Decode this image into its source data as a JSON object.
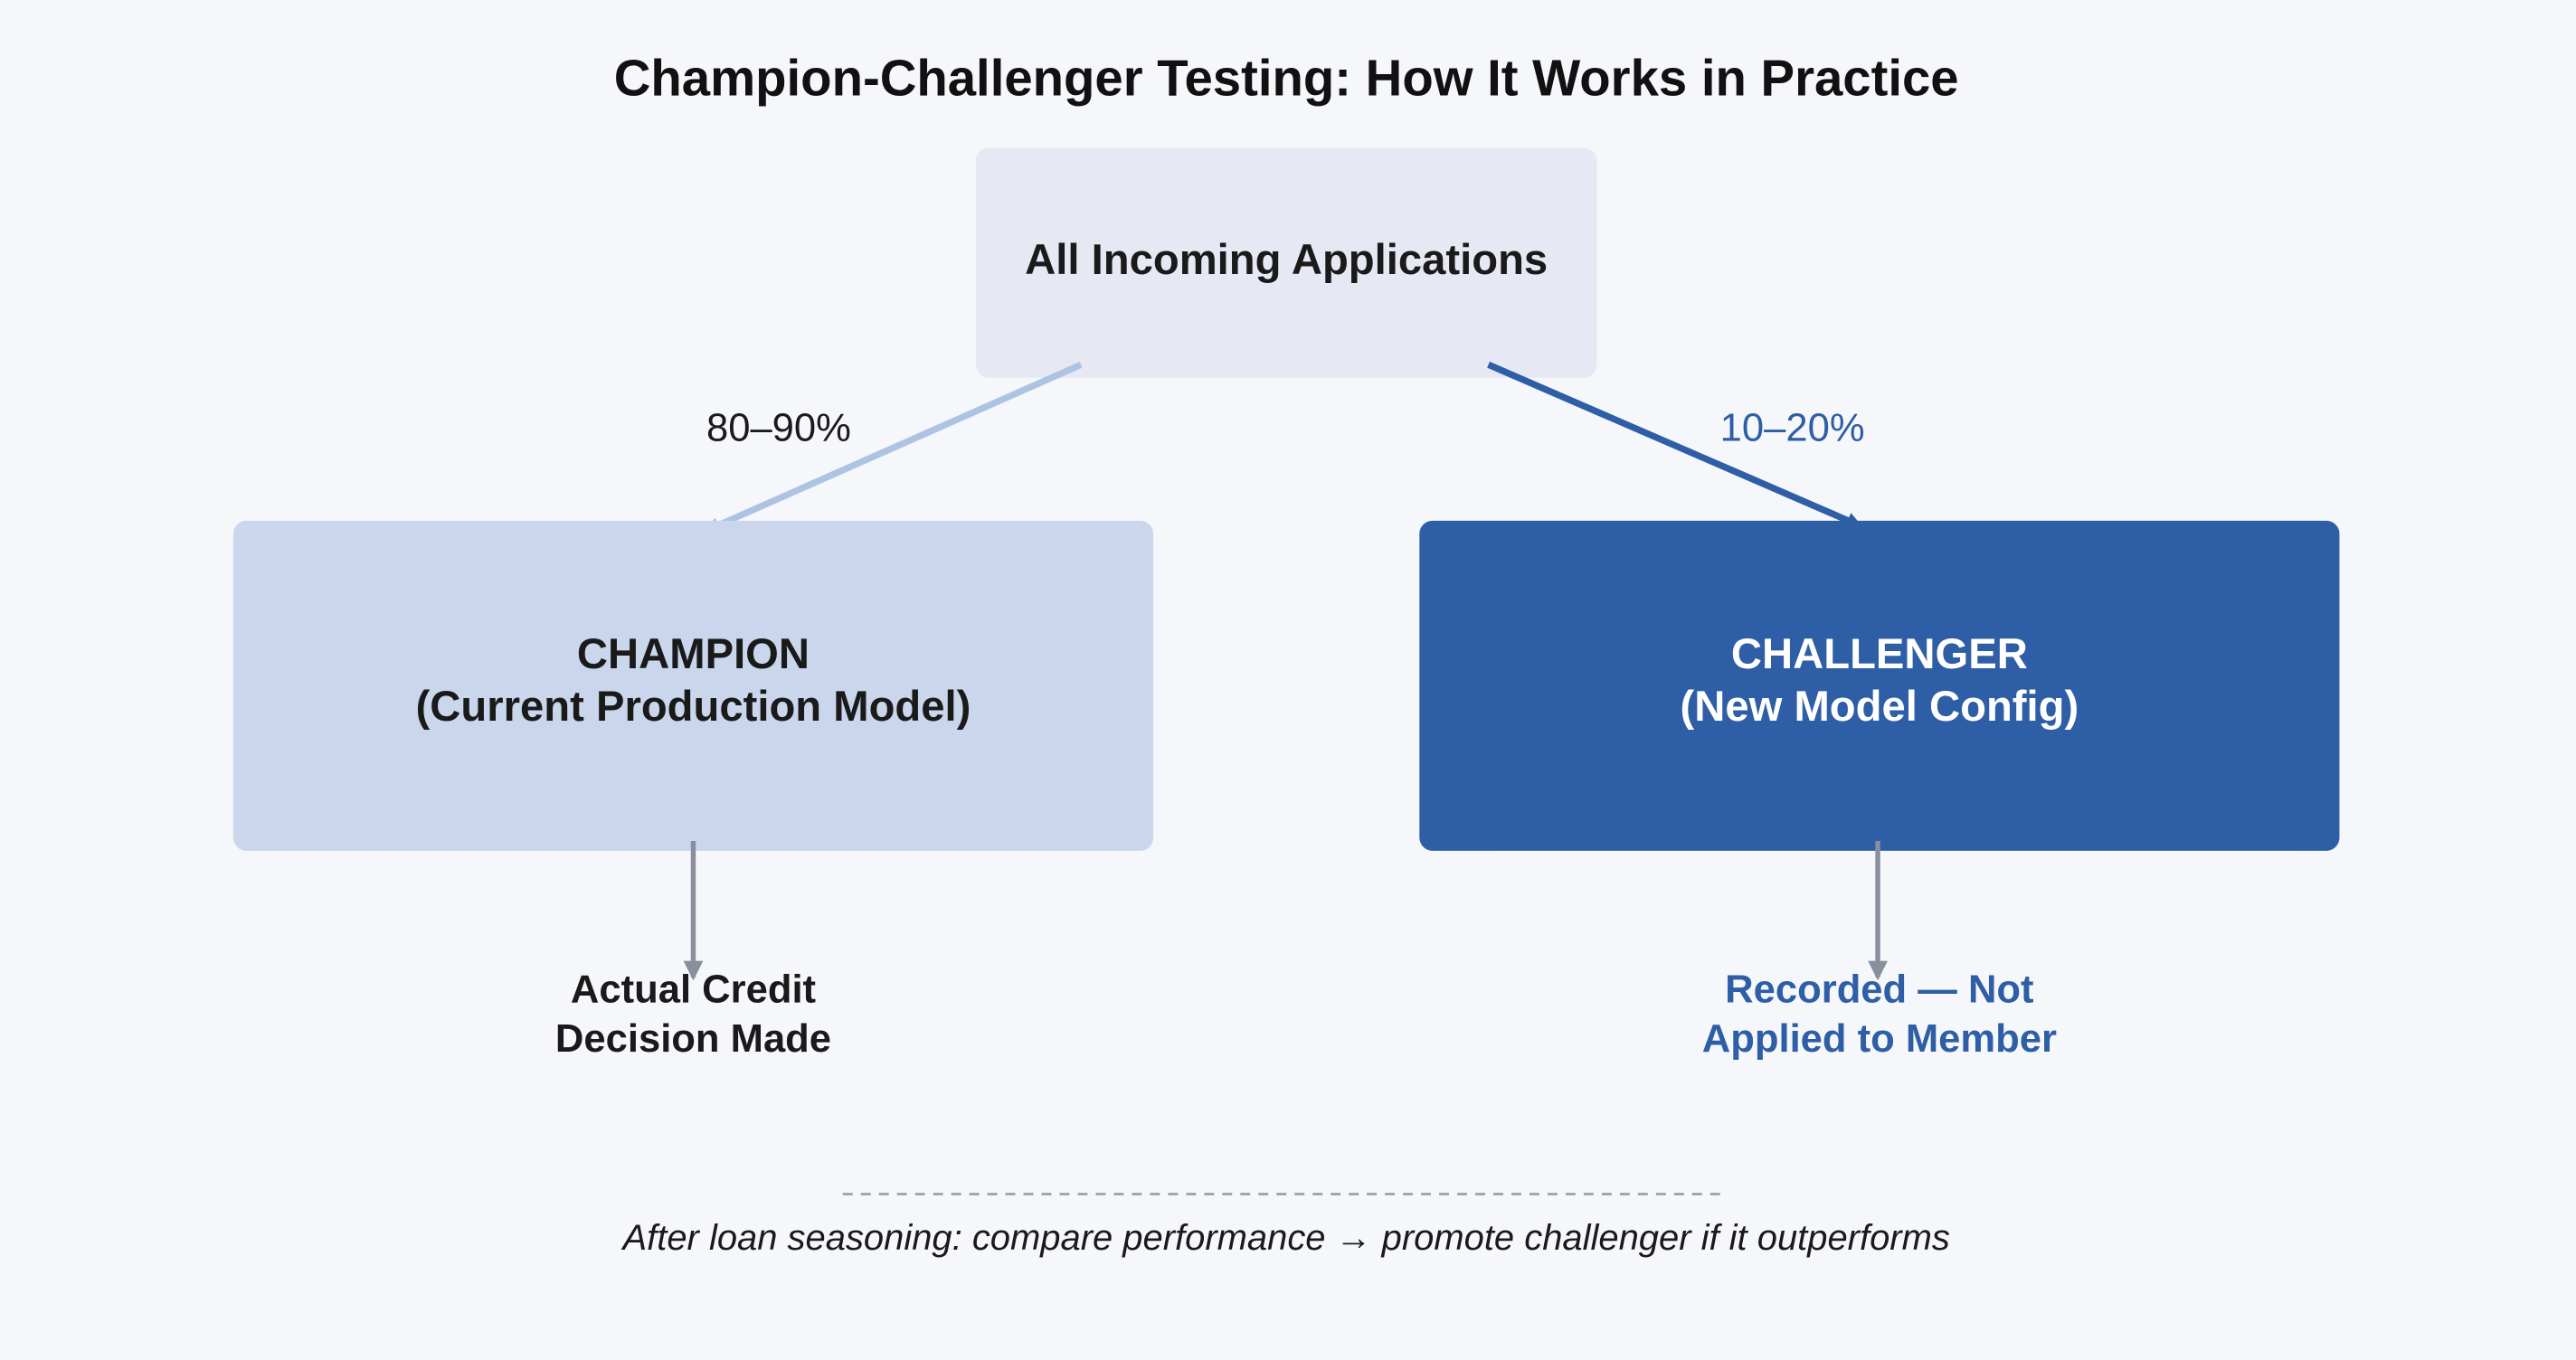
{
  "title": "Champion-Challenger Testing: How It Works in Practice",
  "source": {
    "label": "All Incoming Applications"
  },
  "branches": [
    {
      "share": "80–90%",
      "lines": [
        "CHAMPION",
        "(Current Production Model)"
      ],
      "outcome": [
        "Actual Credit",
        "Decision Made"
      ]
    },
    {
      "share": "10–20%",
      "lines": [
        "CHALLENGER",
        "(New Model Config)"
      ],
      "outcome": [
        "Recorded — Not",
        "Applied to Member"
      ]
    }
  ],
  "footnote": "After loan seasoning: compare performance → promote challenger if it outperforms"
}
